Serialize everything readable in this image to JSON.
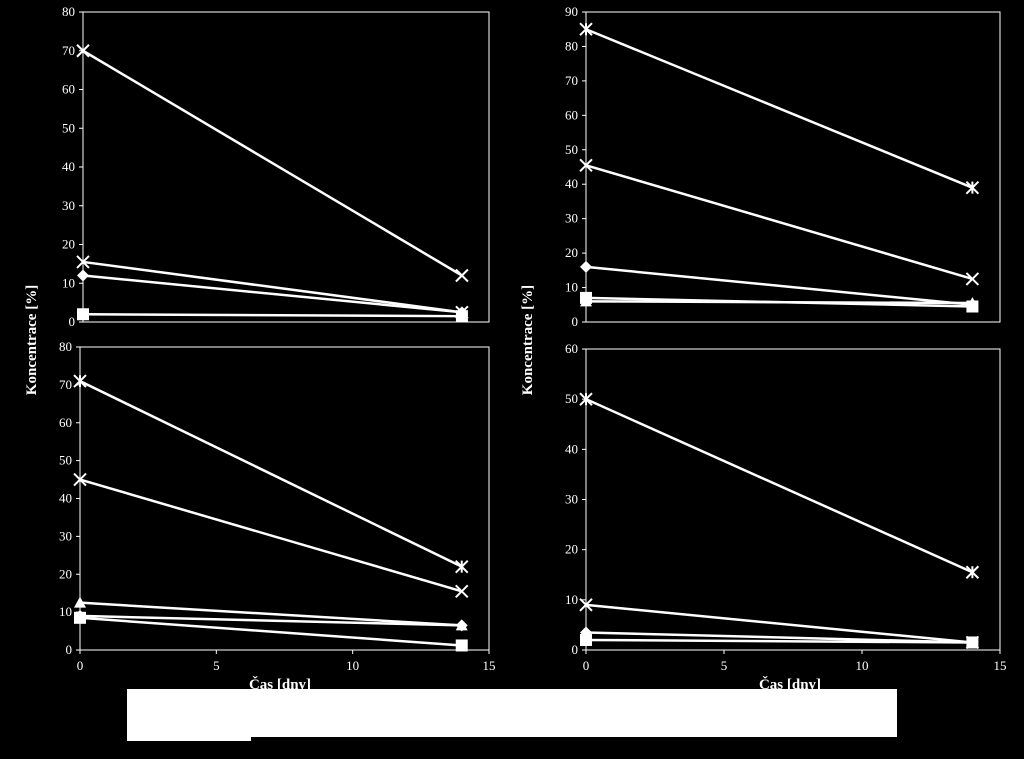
{
  "colors": {
    "background": "#000000",
    "foreground": "#ffffff"
  },
  "shared": {
    "ylabel": "Koncentrace [%]",
    "xlabel": "Čas [dny]"
  },
  "chart_data": [
    {
      "type": "line",
      "panel": "top-left",
      "xlim": [
        0,
        15
      ],
      "ylim": [
        0,
        80
      ],
      "yticks": [
        0,
        10,
        20,
        30,
        40,
        50,
        60,
        70,
        80
      ],
      "xticks": [],
      "xlabel": "",
      "ylabel": "",
      "series": [
        {
          "marker": "x",
          "x": [
            0,
            14
          ],
          "values": [
            70,
            12
          ]
        },
        {
          "marker": "x",
          "x": [
            0,
            14
          ],
          "values": [
            15.5,
            2.5
          ]
        },
        {
          "marker": "diamond",
          "x": [
            0,
            14
          ],
          "values": [
            12,
            2.5
          ]
        },
        {
          "marker": "square",
          "x": [
            0,
            14
          ],
          "values": [
            2,
            1.5
          ]
        }
      ]
    },
    {
      "type": "line",
      "panel": "top-right",
      "xlim": [
        0,
        15
      ],
      "ylim": [
        0,
        90
      ],
      "yticks": [
        0,
        10,
        20,
        30,
        40,
        50,
        60,
        70,
        80,
        90
      ],
      "xticks": [],
      "xlabel": "",
      "ylabel": "Koncentrace [%]",
      "series": [
        {
          "marker": "asterisk",
          "x": [
            0,
            14
          ],
          "values": [
            85,
            39
          ]
        },
        {
          "marker": "x",
          "x": [
            0,
            14
          ],
          "values": [
            45.5,
            12.5
          ]
        },
        {
          "marker": "diamond",
          "x": [
            0,
            14
          ],
          "values": [
            16,
            5
          ]
        },
        {
          "marker": "square",
          "x": [
            0,
            14
          ],
          "values": [
            7,
            4.5
          ]
        },
        {
          "marker": "triangle",
          "x": [
            0,
            14
          ],
          "values": [
            6,
            5.5
          ]
        }
      ]
    },
    {
      "type": "line",
      "panel": "bottom-left",
      "xlim": [
        0,
        15
      ],
      "ylim": [
        0,
        80
      ],
      "yticks": [
        0,
        10,
        20,
        30,
        40,
        50,
        60,
        70,
        80
      ],
      "xticks": [
        0,
        5,
        10,
        15
      ],
      "xlabel": "Čas [dny]",
      "ylabel": "Koncentrace [%]",
      "series": [
        {
          "marker": "asterisk",
          "x": [
            0,
            14
          ],
          "values": [
            71,
            22
          ]
        },
        {
          "marker": "x",
          "x": [
            0,
            14
          ],
          "values": [
            45,
            15.5
          ]
        },
        {
          "marker": "triangle",
          "x": [
            0,
            14
          ],
          "values": [
            12.5,
            6.5
          ]
        },
        {
          "marker": "diamond",
          "x": [
            0,
            14
          ],
          "values": [
            9,
            6.5
          ]
        },
        {
          "marker": "square",
          "x": [
            0,
            14
          ],
          "values": [
            8.5,
            1.2
          ]
        }
      ]
    },
    {
      "type": "line",
      "panel": "bottom-right",
      "xlim": [
        0,
        15
      ],
      "ylim": [
        0,
        60
      ],
      "yticks": [
        0,
        10,
        20,
        30,
        40,
        50,
        60
      ],
      "xticks": [
        0,
        5,
        10,
        15
      ],
      "xlabel": "Čas [dny]",
      "ylabel": "",
      "series": [
        {
          "marker": "asterisk",
          "x": [
            0,
            14
          ],
          "values": [
            50,
            15.5
          ]
        },
        {
          "marker": "x",
          "x": [
            0,
            14
          ],
          "values": [
            9,
            1.5
          ]
        },
        {
          "marker": "diamond",
          "x": [
            0,
            14
          ],
          "values": [
            3.5,
            1.5
          ]
        },
        {
          "marker": "square",
          "x": [
            0,
            14
          ],
          "values": [
            2,
            1.5
          ]
        }
      ]
    }
  ]
}
